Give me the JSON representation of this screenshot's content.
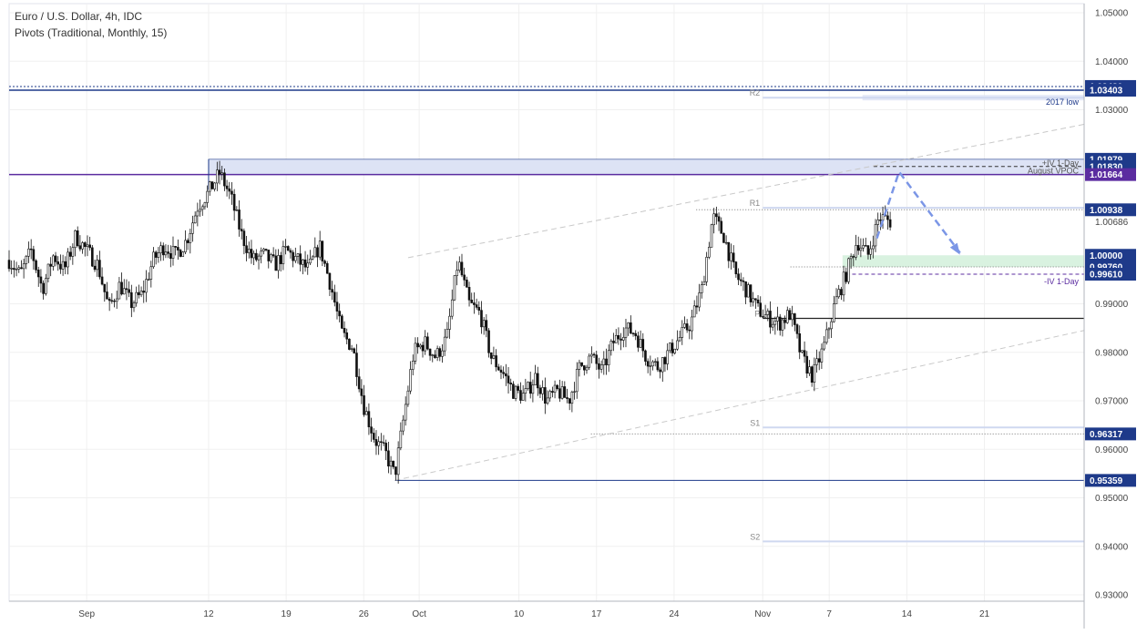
{
  "header": {
    "title": "Euro / U.S. Dollar, 4h, IDC",
    "subtitle": "Pivots (Traditional, Monthly, 15)"
  },
  "chart_data": {
    "type": "candlestick",
    "ylim": [
      0.93,
      1.05
    ],
    "y_ticks": [
      0.93,
      0.94,
      0.95,
      0.96,
      0.97,
      0.98,
      0.99,
      1.03,
      1.04,
      1.05
    ],
    "x_ticks": [
      {
        "label": "Sep",
        "x": 0
      },
      {
        "label": "12",
        "x": 11
      },
      {
        "label": "19",
        "x": 18
      },
      {
        "label": "26",
        "x": 25
      },
      {
        "label": "Oct",
        "x": 30
      },
      {
        "label": "10",
        "x": 39
      },
      {
        "label": "17",
        "x": 46
      },
      {
        "label": "24",
        "x": 53
      },
      {
        "label": "Nov",
        "x": 61
      },
      {
        "label": "7",
        "x": 67
      },
      {
        "label": "14",
        "x": 74
      },
      {
        "label": "21",
        "x": 81
      }
    ],
    "x_range": [
      -7,
      90
    ],
    "price_series": [
      {
        "x": -7,
        "v": 0.999
      },
      {
        "x": -6,
        "v": 0.996
      },
      {
        "x": -5,
        "v": 1.001
      },
      {
        "x": -4,
        "v": 0.993
      },
      {
        "x": -3,
        "v": 1.0
      },
      {
        "x": -2,
        "v": 0.997
      },
      {
        "x": -1,
        "v": 1.004
      },
      {
        "x": 0,
        "v": 1.001
      },
      {
        "x": 1,
        "v": 0.998
      },
      {
        "x": 2,
        "v": 0.989
      },
      {
        "x": 3,
        "v": 0.994
      },
      {
        "x": 4,
        "v": 0.99
      },
      {
        "x": 5,
        "v": 0.992
      },
      {
        "x": 6,
        "v": 0.999
      },
      {
        "x": 7,
        "v": 1.002
      },
      {
        "x": 8,
        "v": 1.0
      },
      {
        "x": 9,
        "v": 1.003
      },
      {
        "x": 10,
        "v": 1.01
      },
      {
        "x": 11,
        "v": 1.013
      },
      {
        "x": 12,
        "v": 1.017
      },
      {
        "x": 13,
        "v": 1.012
      },
      {
        "x": 14,
        "v": 1.004
      },
      {
        "x": 15,
        "v": 0.999
      },
      {
        "x": 16,
        "v": 1.0
      },
      {
        "x": 17,
        "v": 0.998
      },
      {
        "x": 18,
        "v": 1.001
      },
      {
        "x": 19,
        "v": 0.999
      },
      {
        "x": 20,
        "v": 0.997
      },
      {
        "x": 21,
        "v": 1.002
      },
      {
        "x": 22,
        "v": 0.994
      },
      {
        "x": 23,
        "v": 0.984
      },
      {
        "x": 24,
        "v": 0.981
      },
      {
        "x": 25,
        "v": 0.969
      },
      {
        "x": 26,
        "v": 0.962
      },
      {
        "x": 27,
        "v": 0.959
      },
      {
        "x": 27.8,
        "v": 0.9545
      },
      {
        "x": 28.5,
        "v": 0.965
      },
      {
        "x": 29.5,
        "v": 0.98
      },
      {
        "x": 30.5,
        "v": 0.982
      },
      {
        "x": 31.5,
        "v": 0.979
      },
      {
        "x": 32.5,
        "v": 0.983
      },
      {
        "x": 33.5,
        "v": 0.999
      },
      {
        "x": 34.5,
        "v": 0.99
      },
      {
        "x": 35.5,
        "v": 0.988
      },
      {
        "x": 36.5,
        "v": 0.979
      },
      {
        "x": 37.5,
        "v": 0.976
      },
      {
        "x": 38.5,
        "v": 0.972
      },
      {
        "x": 39.5,
        "v": 0.971
      },
      {
        "x": 40.5,
        "v": 0.975
      },
      {
        "x": 41.5,
        "v": 0.97
      },
      {
        "x": 42.5,
        "v": 0.972
      },
      {
        "x": 43.5,
        "v": 0.97
      },
      {
        "x": 44.5,
        "v": 0.977
      },
      {
        "x": 45.5,
        "v": 0.979
      },
      {
        "x": 46.5,
        "v": 0.976
      },
      {
        "x": 47.5,
        "v": 0.982
      },
      {
        "x": 48.5,
        "v": 0.985
      },
      {
        "x": 49.5,
        "v": 0.984
      },
      {
        "x": 50.5,
        "v": 0.979
      },
      {
        "x": 51.5,
        "v": 0.977
      },
      {
        "x": 52.5,
        "v": 0.98
      },
      {
        "x": 53.5,
        "v": 0.983
      },
      {
        "x": 54.5,
        "v": 0.986
      },
      {
        "x": 55.5,
        "v": 0.993
      },
      {
        "x": 56.5,
        "v": 1.008
      },
      {
        "x": 57.5,
        "v": 1.004
      },
      {
        "x": 58.5,
        "v": 0.996
      },
      {
        "x": 59.5,
        "v": 0.993
      },
      {
        "x": 60.5,
        "v": 0.989
      },
      {
        "x": 61.5,
        "v": 0.987
      },
      {
        "x": 62.5,
        "v": 0.986
      },
      {
        "x": 63.5,
        "v": 0.988
      },
      {
        "x": 64.5,
        "v": 0.979
      },
      {
        "x": 65.5,
        "v": 0.975
      },
      {
        "x": 66.5,
        "v": 0.981
      },
      {
        "x": 67.5,
        "v": 0.99
      },
      {
        "x": 68.5,
        "v": 0.996
      },
      {
        "x": 69.5,
        "v": 1.003
      },
      {
        "x": 70.5,
        "v": 1.0
      },
      {
        "x": 71.5,
        "v": 1.008
      },
      {
        "x": 72.5,
        "v": 1.007
      }
    ],
    "pivots": [
      {
        "label": "R2",
        "value": 1.0325
      },
      {
        "label": "R1",
        "value": 1.0098
      },
      {
        "label": "P",
        "value": 0.987
      },
      {
        "label": "S1",
        "value": 0.9645
      },
      {
        "label": "S2",
        "value": 0.941
      }
    ],
    "annotations": [
      {
        "text": "2017 low"
      },
      {
        "text": "+IV 1-Day"
      },
      {
        "text": "August VPOC"
      },
      {
        "text": "-IV 1-Day"
      }
    ],
    "price_badges": [
      {
        "value": "1.03480",
        "price": 1.0348,
        "color": "#1e3a8a"
      },
      {
        "value": "1.03403",
        "price": 1.03403,
        "color": "#1e3a8a"
      },
      {
        "value": "1.01979",
        "price": 1.01979,
        "color": "#1e3a8a"
      },
      {
        "value": "1.01830",
        "price": 1.0183,
        "color": "#1e3a8a"
      },
      {
        "value": "1.01664",
        "price": 1.01664,
        "color": "#5b2ca0"
      },
      {
        "value": "1.00938",
        "price": 1.00938,
        "color": "#1e3a8a"
      },
      {
        "value": "1.00000",
        "price": 1.0,
        "color": "#1e3a8a"
      },
      {
        "value": "0.99760",
        "price": 0.9976,
        "color": "#1e3a8a"
      },
      {
        "value": "0.99610",
        "price": 0.9961,
        "color": "#1e3a8a"
      },
      {
        "value": "0.96317",
        "price": 0.96317,
        "color": "#1e3a8a"
      },
      {
        "value": "0.95359",
        "price": 0.95359,
        "color": "#1e3a8a"
      }
    ],
    "plain_price_labels": [
      {
        "value": "1.00686",
        "price": 1.00686
      }
    ],
    "colors": {
      "candle": "#111111",
      "navy_line": "#1e3a8a",
      "purple_line": "#5b2ca0",
      "zone_fill": "#dde3f5",
      "green_zone": "#d9f2e0",
      "arrow": "#7b96e6",
      "pivot_line": "#cfd8f0",
      "grid": "#f0f0f0"
    }
  }
}
